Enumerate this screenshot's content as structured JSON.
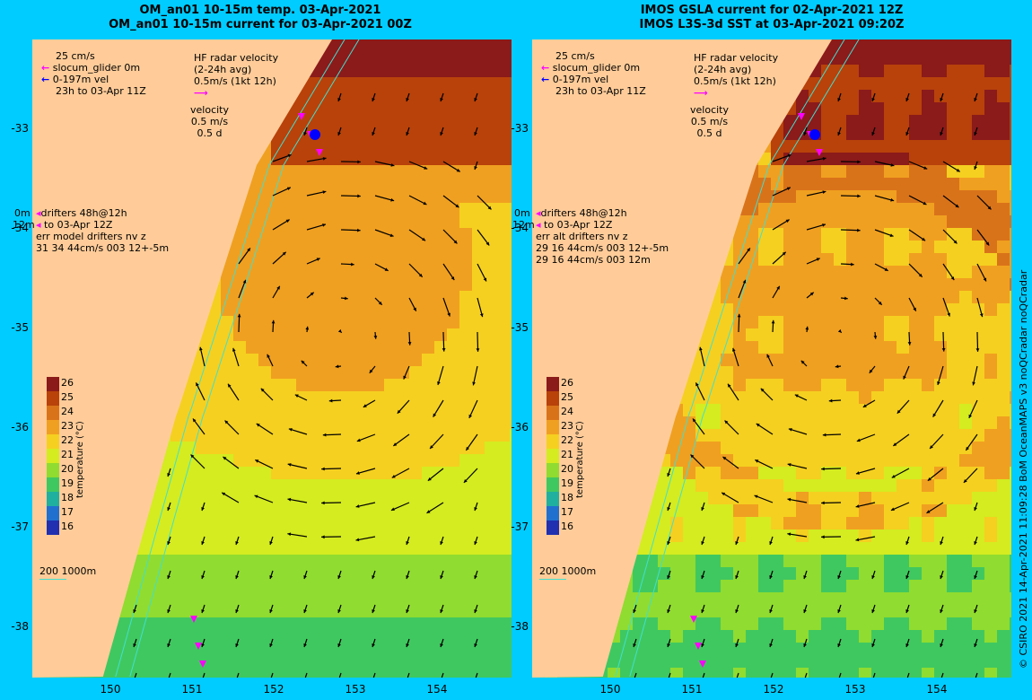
{
  "left": {
    "title_line1": "OM_an01 10-15m temp. 03-Apr-2021",
    "title_line2": "OM_an01 10-15m current for 03-Apr-2021 00Z",
    "legend_glider": [
      "25 cm/s",
      "slocum_glider 0m",
      "0-197m vel",
      "23h to 03-Apr 11Z"
    ],
    "legend_hf": [
      "HF radar velocity",
      "(2-24h avg)",
      "0.5m/s (1kt 12h)"
    ],
    "legend_vel": [
      "velocity",
      "0.5 m/s",
      "0.5 d"
    ],
    "legend_drifters": [
      "drifters 48h@12h",
      "to 03-Apr 12Z",
      "err model drifters nv z",
      "31 34 44cm/s 003 12+-5m"
    ],
    "depth_label": "200  1000m",
    "edge_0m": "0m",
    "edge_12m": "12m"
  },
  "right": {
    "title_line1": "IMOS GSLA current for 02-Apr-2021 12Z",
    "title_line2": "IMOS L3S-3d SST at 03-Apr-2021 09:20Z",
    "legend_glider": [
      "25 cm/s",
      "slocum_glider 0m",
      "0-197m vel",
      "23h to 03-Apr 11Z"
    ],
    "legend_hf": [
      "HF radar velocity",
      "(2-24h avg)",
      "0.5m/s (1kt 12h)"
    ],
    "legend_vel": [
      "velocity",
      "0.5 m/s",
      "0.5 d"
    ],
    "legend_drifters": [
      "drifters 48h@12h",
      "to 03-Apr 12Z",
      "err alt drifters nv z",
      "29 16 44cm/s 003 12+-5m",
      "29 16 44cm/s 003 12m"
    ],
    "depth_label": "200  1000m",
    "edge_0m": "0m",
    "edge_12m": "12m"
  },
  "lat_ticks": [
    "-33",
    "-34",
    "-35",
    "-36",
    "-37",
    "-38"
  ],
  "lon_ticks": [
    "150",
    "151",
    "152",
    "153",
    "154"
  ],
  "colorbar": {
    "unit": "temperature (°C)",
    "ticks": [
      "26",
      "25",
      "24",
      "23",
      "22",
      "21",
      "20",
      "19",
      "18",
      "17",
      "16"
    ],
    "colors": [
      "#8b1a1a",
      "#b8420a",
      "#d9731a",
      "#f0a020",
      "#f5d020",
      "#d4ec20",
      "#90dc30",
      "#40c860",
      "#20b0a0",
      "#2070d0",
      "#2030b0"
    ]
  },
  "credit": "© CSIRO 2021  14-Apr-2021 11:09:28 BoM OceanMAPS v3 noQCradar noQCradar",
  "colors": {
    "background": "#00ccff",
    "land": "#ffcc99",
    "arrow": "#000000",
    "drifter": "#ff00ff",
    "glider": "#0000ff",
    "isobath": "#40e0d0"
  }
}
